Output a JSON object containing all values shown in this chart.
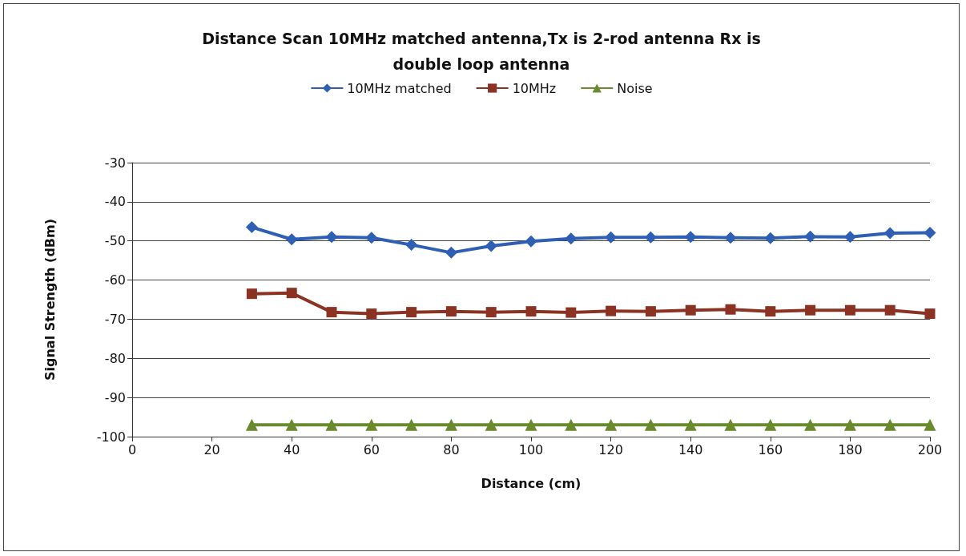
{
  "chart_data": {
    "type": "line",
    "title": "Distance Scan 10MHz matched antenna,Tx is 2-rod antenna Rx is\ndouble loop antenna",
    "xlabel": "Distance (cm)",
    "ylabel": "Signal Strength (dBm)",
    "x": [
      30,
      40,
      50,
      60,
      70,
      80,
      90,
      100,
      110,
      120,
      130,
      140,
      150,
      160,
      170,
      180,
      190,
      200
    ],
    "series": [
      {
        "name": "10MHz matched",
        "color": "#2e5fb4",
        "marker": "diamond",
        "values": [
          -46.5,
          -49.6,
          -49,
          -49.2,
          -51,
          -53,
          -51.3,
          -50.1,
          -49.4,
          -49.1,
          -49.1,
          -49,
          -49.2,
          -49.3,
          -48.9,
          -49,
          -48,
          -47.9
        ]
      },
      {
        "name": "10MHz",
        "color": "#8b3222",
        "marker": "square",
        "values": [
          -63.5,
          -63.3,
          -68.2,
          -68.6,
          -68.2,
          -68,
          -68.2,
          -68,
          -68.3,
          -67.9,
          -68,
          -67.7,
          -67.5,
          -68,
          -67.7,
          -67.7,
          -67.7,
          -68.6
        ]
      },
      {
        "name": "Noise",
        "color": "#6a8a2e",
        "marker": "triangle",
        "values": [
          -97,
          -97,
          -97,
          -97,
          -97,
          -97,
          -97,
          -97,
          -97,
          -97,
          -97,
          -97,
          -97,
          -97,
          -97,
          -97,
          -97,
          -97
        ]
      }
    ],
    "xlim": [
      0,
      200
    ],
    "xticks": [
      0,
      20,
      40,
      60,
      80,
      100,
      120,
      140,
      160,
      180,
      200
    ],
    "ylim": [
      -100,
      -30
    ],
    "yticks": [
      -100,
      -90,
      -80,
      -70,
      -60,
      -50,
      -40,
      -30
    ],
    "grid": "y",
    "legend": "top",
    "line_style": "solid"
  }
}
